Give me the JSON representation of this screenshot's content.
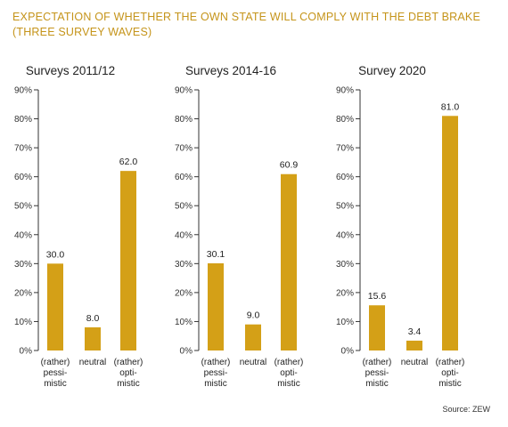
{
  "title_lines": [
    "EXPECTATION OF WHETHER THE OWN STATE WILL COMPLY WITH THE DEBT BRAKE",
    "(THREE SURVEY WAVES)"
  ],
  "source": "Source: ZEW",
  "colors": {
    "bar": "#d4a017",
    "title": "#c5941a",
    "axis": "#333333"
  },
  "chart_data": [
    {
      "type": "bar",
      "title": "Surveys 2011/12",
      "categories": [
        "(rather)\npessi-\nmistic",
        "neutral",
        "(rather)\nopti-\nmistic"
      ],
      "values": [
        30.0,
        8.0,
        62.0
      ],
      "value_labels": [
        "30.0",
        "8.0",
        "62.0"
      ],
      "ylim": [
        0,
        90
      ],
      "yticks": [
        "0%",
        "10%",
        "20%",
        "30%",
        "40%",
        "50%",
        "60%",
        "70%",
        "80%",
        "90%"
      ]
    },
    {
      "type": "bar",
      "title": "Surveys 2014-16",
      "categories": [
        "(rather)\npessi-\nmistic",
        "neutral",
        "(rather)\nopti-\nmistic"
      ],
      "values": [
        30.1,
        9.0,
        60.9
      ],
      "value_labels": [
        "30.1",
        "9.0",
        "60.9"
      ],
      "ylim": [
        0,
        90
      ],
      "yticks": [
        "0%",
        "10%",
        "20%",
        "30%",
        "40%",
        "50%",
        "60%",
        "70%",
        "80%",
        "90%"
      ]
    },
    {
      "type": "bar",
      "title": "Survey 2020",
      "categories": [
        "(rather)\npessi-\nmistic",
        "neutral",
        "(rather)\nopti-\nmistic"
      ],
      "values": [
        15.6,
        3.4,
        81.0
      ],
      "value_labels": [
        "15.6",
        "3.4",
        "81.0"
      ],
      "ylim": [
        0,
        90
      ],
      "yticks": [
        "0%",
        "10%",
        "20%",
        "30%",
        "40%",
        "50%",
        "60%",
        "70%",
        "80%",
        "90%"
      ]
    }
  ]
}
